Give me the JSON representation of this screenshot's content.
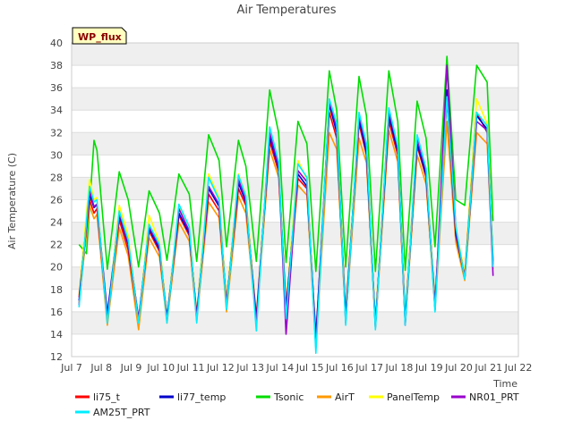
{
  "chart_data": {
    "type": "line",
    "title": "Air Temperatures",
    "xlabel": "Time",
    "ylabel": "Air Temperature (C)",
    "badge": "WP_flux",
    "ylim": [
      12,
      40
    ],
    "xlim": [
      7,
      22
    ],
    "y_ticks": [
      12,
      14,
      16,
      18,
      20,
      22,
      24,
      26,
      28,
      30,
      32,
      34,
      36,
      38,
      40
    ],
    "x_ticks": [
      {
        "value": 7,
        "label": "Jul 7"
      },
      {
        "value": 8,
        "label": "Jul 8"
      },
      {
        "value": 9,
        "label": "Jul 9"
      },
      {
        "value": 10,
        "label": "Jul 10"
      },
      {
        "value": 11,
        "label": "Jul 11"
      },
      {
        "value": 12,
        "label": "Jul 12"
      },
      {
        "value": 13,
        "label": "Jul 13"
      },
      {
        "value": 14,
        "label": "Jul 14"
      },
      {
        "value": 15,
        "label": "Jul 15"
      },
      {
        "value": 16,
        "label": "Jul 16"
      },
      {
        "value": 17,
        "label": "Jul 17"
      },
      {
        "value": 18,
        "label": "Jul 18"
      },
      {
        "value": 19,
        "label": "Jul 19"
      },
      {
        "value": 20,
        "label": "Jul 20"
      },
      {
        "value": 21,
        "label": "Jul 21"
      },
      {
        "value": 22,
        "label": "Jul 22"
      }
    ],
    "grid": true,
    "legend_placement": "bottom",
    "series": [
      {
        "name": "li75_t",
        "color": "#ff0000",
        "x": [
          7.25,
          7.6,
          7.75,
          7.85,
          8.2,
          8.6,
          8.9,
          9.25,
          9.6,
          9.95,
          10.2,
          10.6,
          10.95,
          11.2,
          11.6,
          11.95,
          12.2,
          12.6,
          12.85,
          13.2,
          13.65,
          13.95,
          14.2,
          14.6,
          14.9,
          15.2,
          15.65,
          15.9,
          16.2,
          16.65,
          16.9,
          17.2,
          17.65,
          17.95,
          18.2,
          18.6,
          18.9,
          19.2,
          19.6,
          19.9,
          20.2,
          20.6,
          20.95,
          21.15
        ],
        "y": [
          17.3,
          26.0,
          24.8,
          25.2,
          15.6,
          24.2,
          21.5,
          15.2,
          23.2,
          21.4,
          15.4,
          24.6,
          22.8,
          15.8,
          26.5,
          25.0,
          16.8,
          27.0,
          25.5,
          15.6,
          31.2,
          28.5,
          16.4,
          27.9,
          27.0,
          13.8,
          33.8,
          31.5,
          15.8,
          32.8,
          30.0,
          15.0,
          33.0,
          30.0,
          15.4,
          30.8,
          28.0,
          16.8,
          35.0,
          22.8,
          19.2,
          33.8,
          32.0,
          20.5
        ]
      },
      {
        "name": "li77_temp",
        "color": "#0000cc",
        "x": [
          7.25,
          7.6,
          7.75,
          7.85,
          8.2,
          8.6,
          8.9,
          9.25,
          9.6,
          9.95,
          10.2,
          10.6,
          10.95,
          11.2,
          11.6,
          11.95,
          12.2,
          12.6,
          12.85,
          13.2,
          13.65,
          13.95,
          14.2,
          14.6,
          14.9,
          15.2,
          15.65,
          15.9,
          16.2,
          16.65,
          16.9,
          17.2,
          17.65,
          17.95,
          18.2,
          18.6,
          18.9,
          19.2,
          19.6,
          19.9,
          20.2,
          20.6,
          20.95,
          21.15
        ],
        "y": [
          17.0,
          26.5,
          25.3,
          25.6,
          15.8,
          24.6,
          22.0,
          15.4,
          23.4,
          21.6,
          15.5,
          24.8,
          23.0,
          15.6,
          27.0,
          25.4,
          16.6,
          27.5,
          25.8,
          15.3,
          31.6,
          28.8,
          16.2,
          28.3,
          27.2,
          13.6,
          34.5,
          32.0,
          15.5,
          33.2,
          30.2,
          14.8,
          33.5,
          30.3,
          15.1,
          31.0,
          28.2,
          16.5,
          35.8,
          23.0,
          19.0,
          33.5,
          32.3,
          20.2
        ]
      },
      {
        "name": "Tsonic",
        "color": "#00dd00",
        "x": [
          7.25,
          7.5,
          7.75,
          7.85,
          8.2,
          8.6,
          8.9,
          9.25,
          9.6,
          9.95,
          10.2,
          10.6,
          10.95,
          11.2,
          11.6,
          11.95,
          12.2,
          12.6,
          12.85,
          13.2,
          13.65,
          13.95,
          14.2,
          14.6,
          14.9,
          15.2,
          15.65,
          15.9,
          16.2,
          16.65,
          16.9,
          17.2,
          17.65,
          17.95,
          18.2,
          18.6,
          18.9,
          19.2,
          19.6,
          19.9,
          20.2,
          20.6,
          20.95,
          21.15
        ],
        "y": [
          22.0,
          21.2,
          31.3,
          30.4,
          19.8,
          28.5,
          26.0,
          20.0,
          26.8,
          24.8,
          20.6,
          28.3,
          26.5,
          20.5,
          31.8,
          29.5,
          21.8,
          31.3,
          29.0,
          20.5,
          35.8,
          32.0,
          20.4,
          33.0,
          31.0,
          19.6,
          37.5,
          34.0,
          20.0,
          37.0,
          33.5,
          19.6,
          37.5,
          33.0,
          19.7,
          34.8,
          31.5,
          21.8,
          38.8,
          26.0,
          25.5,
          38.0,
          36.5,
          24.1
        ]
      },
      {
        "name": "AirT",
        "color": "#ff9900",
        "x": [
          7.25,
          7.6,
          7.75,
          7.85,
          8.2,
          8.6,
          8.9,
          9.25,
          9.6,
          9.95,
          10.2,
          10.6,
          10.95,
          11.2,
          11.6,
          11.95,
          12.2,
          12.6,
          12.85,
          13.2,
          13.65,
          13.95,
          14.2,
          14.6,
          14.9,
          15.2,
          15.65,
          15.9,
          16.2,
          16.65,
          16.9,
          17.2,
          17.65,
          17.95,
          18.2,
          18.6,
          18.9,
          19.2,
          19.6,
          19.9,
          20.2,
          20.6,
          20.95,
          21.15
        ],
        "y": [
          16.8,
          25.5,
          24.3,
          24.7,
          14.8,
          23.5,
          21.0,
          14.4,
          22.6,
          20.9,
          15.0,
          24.0,
          22.3,
          15.2,
          25.8,
          24.4,
          16.0,
          26.3,
          24.8,
          15.0,
          30.5,
          28.0,
          15.8,
          27.3,
          26.4,
          13.0,
          32.0,
          30.5,
          15.2,
          31.5,
          29.3,
          14.6,
          32.2,
          29.4,
          14.9,
          30.0,
          27.4,
          16.2,
          33.0,
          22.2,
          18.8,
          32.0,
          31.0,
          19.8
        ]
      },
      {
        "name": "PanelTemp",
        "color": "#ffff00",
        "x": [
          7.25,
          7.6,
          7.75,
          7.85,
          8.2,
          8.6,
          8.9,
          9.25,
          9.6,
          9.95,
          10.2,
          10.6,
          10.95,
          11.2,
          11.6,
          11.95,
          12.2,
          12.6,
          12.85,
          13.2,
          13.65,
          13.95,
          14.2,
          14.6,
          14.9,
          15.2,
          15.65,
          15.9,
          16.2,
          16.65,
          16.9,
          17.2,
          17.65,
          17.95,
          18.2,
          18.6,
          18.9,
          19.2,
          19.6,
          19.9,
          20.2,
          20.6,
          20.95,
          21.15
        ],
        "y": [
          17.5,
          27.8,
          26.0,
          26.2,
          15.3,
          25.5,
          22.8,
          15.0,
          24.6,
          22.2,
          15.6,
          25.5,
          23.6,
          15.8,
          28.3,
          26.2,
          17.0,
          28.3,
          26.4,
          15.6,
          32.0,
          29.3,
          16.5,
          29.5,
          27.8,
          13.5,
          34.0,
          32.3,
          16.0,
          33.4,
          30.5,
          15.2,
          34.0,
          30.6,
          15.6,
          31.6,
          28.6,
          17.0,
          35.0,
          23.4,
          19.5,
          35.0,
          32.8,
          20.8
        ]
      },
      {
        "name": "NR01_PRT",
        "color": "#9900cc",
        "x": [
          7.25,
          7.6,
          7.75,
          7.85,
          8.2,
          8.6,
          8.9,
          9.25,
          9.6,
          9.95,
          10.2,
          10.6,
          10.95,
          11.2,
          11.6,
          11.95,
          12.2,
          12.6,
          12.85,
          13.2,
          13.65,
          13.95,
          14.2,
          14.6,
          14.9,
          15.2,
          15.65,
          15.9,
          16.2,
          16.65,
          16.9,
          17.2,
          17.65,
          17.95,
          18.2,
          18.6,
          18.9,
          19.2,
          19.6,
          19.9,
          20.2,
          20.6,
          20.95,
          21.15
        ],
        "y": [
          16.6,
          26.8,
          25.4,
          25.6,
          15.2,
          24.8,
          22.2,
          15.2,
          23.6,
          21.8,
          15.2,
          25.2,
          23.2,
          15.3,
          27.2,
          25.6,
          16.5,
          27.8,
          26.0,
          15.0,
          32.0,
          29.0,
          14.0,
          28.6,
          27.6,
          12.8,
          34.8,
          32.4,
          15.0,
          33.5,
          30.8,
          14.6,
          34.0,
          30.6,
          14.8,
          31.5,
          28.6,
          16.2,
          38.0,
          23.4,
          19.0,
          33.0,
          32.2,
          19.2
        ]
      },
      {
        "name": "AM25T_PRT",
        "color": "#00eeff",
        "x": [
          7.25,
          7.6,
          7.75,
          7.85,
          8.2,
          8.6,
          8.9,
          9.25,
          9.6,
          9.95,
          10.2,
          10.6,
          10.95,
          11.2,
          11.6,
          11.95,
          12.2,
          12.6,
          12.85,
          13.2,
          13.65,
          13.95,
          14.2,
          14.6,
          14.9,
          15.2,
          15.65,
          15.9,
          16.2,
          16.65,
          16.9,
          17.2,
          17.65,
          17.95,
          18.2,
          18.6,
          18.9,
          19.2,
          19.6,
          19.9,
          20.2,
          20.6,
          20.95,
          21.15
        ],
        "y": [
          16.4,
          27.2,
          25.8,
          26.0,
          15.0,
          25.0,
          22.4,
          15.0,
          23.8,
          22.0,
          15.0,
          25.6,
          23.6,
          15.0,
          28.0,
          26.0,
          16.2,
          28.2,
          26.3,
          14.3,
          32.5,
          29.4,
          15.4,
          29.2,
          28.0,
          12.3,
          35.0,
          32.8,
          14.8,
          33.8,
          31.0,
          14.4,
          34.2,
          30.8,
          14.8,
          31.8,
          28.8,
          16.0,
          35.2,
          23.6,
          18.9,
          33.8,
          32.6,
          20.0
        ]
      }
    ]
  }
}
